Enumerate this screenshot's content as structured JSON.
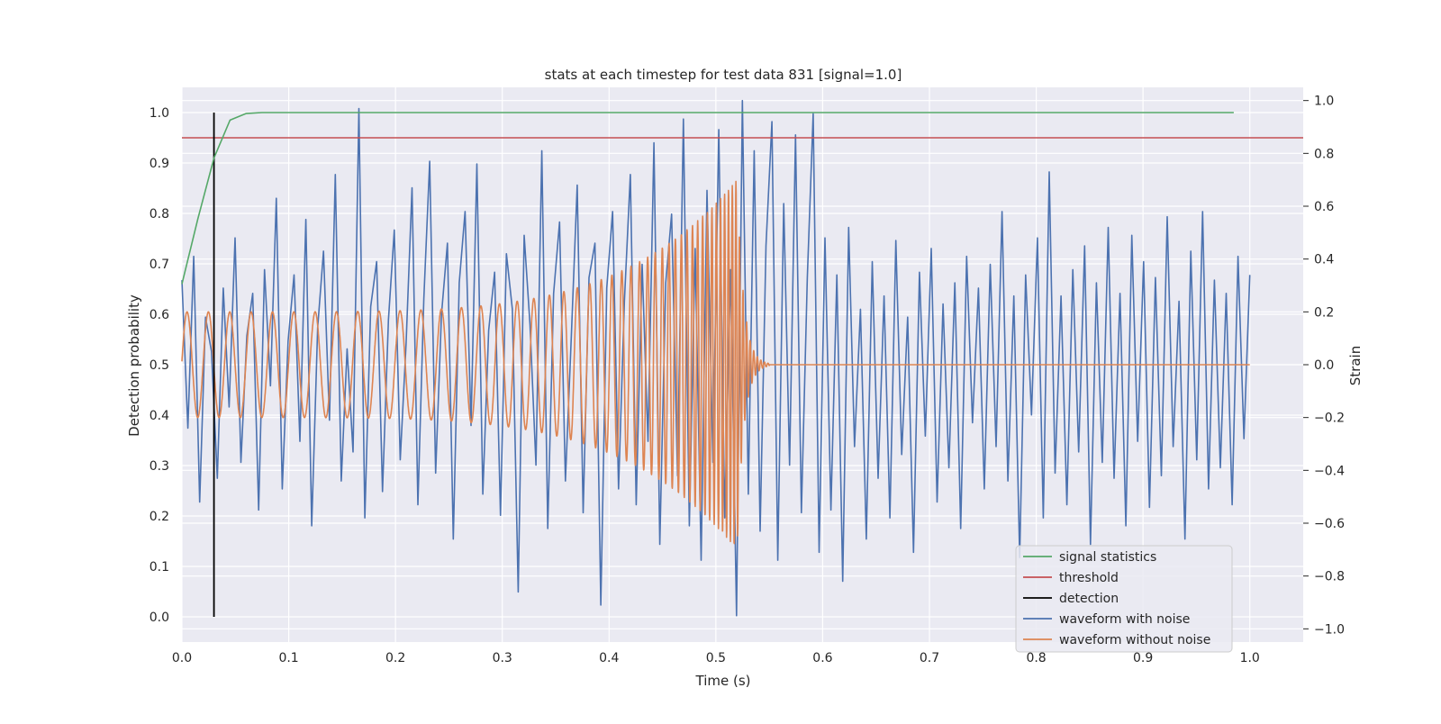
{
  "chart_data": {
    "type": "line",
    "title": "stats at each timestep for test data 831 [signal=1.0]",
    "xlabel": "Time (s)",
    "ylabel_left": "Detection probability",
    "ylabel_right": "Strain",
    "xlim": [
      0.0,
      1.05
    ],
    "ylim_left": [
      -0.05,
      1.05
    ],
    "ylim_right": [
      -1.05,
      1.05
    ],
    "x_ticks": [
      "0.0",
      "0.1",
      "0.2",
      "0.3",
      "0.4",
      "0.5",
      "0.6",
      "0.7",
      "0.8",
      "0.9",
      "1.0"
    ],
    "y_ticks_left": [
      "0.0",
      "0.1",
      "0.2",
      "0.3",
      "0.4",
      "0.5",
      "0.6",
      "0.7",
      "0.8",
      "0.9",
      "1.0"
    ],
    "y_ticks_right": [
      "−1.0",
      "−0.8",
      "−0.6",
      "−0.4",
      "−0.2",
      "0.0",
      "0.2",
      "0.4",
      "0.6",
      "0.8",
      "1.0"
    ],
    "grid": true,
    "legend_position": "lower-right",
    "signal_statistics": {
      "x": [
        0.0,
        0.015,
        0.03,
        0.045,
        0.06,
        0.075,
        0.1,
        0.3,
        0.5,
        0.7,
        0.9,
        0.985
      ],
      "y": [
        0.66,
        0.79,
        0.91,
        0.985,
        0.998,
        1.0,
        1.0,
        1.0,
        1.0,
        1.0,
        1.0,
        1.0
      ]
    },
    "threshold": {
      "value": 0.95
    },
    "detection": {
      "x": 0.03
    },
    "waveform_with_noise": {
      "x_start": 0.0,
      "x_end": 1.0,
      "values": [
        0.32,
        -0.24,
        0.41,
        -0.52,
        0.18,
        0.05,
        -0.43,
        0.29,
        -0.16,
        0.48,
        -0.37,
        0.11,
        0.27,
        -0.55,
        0.36,
        -0.08,
        0.63,
        -0.47,
        0.09,
        0.34,
        -0.29,
        0.55,
        -0.61,
        0.14,
        0.43,
        -0.21,
        0.72,
        -0.44,
        0.06,
        -0.33,
        0.97,
        -0.58,
        0.22,
        0.39,
        -0.48,
        0.17,
        0.51,
        -0.36,
        0.08,
        0.67,
        -0.53,
        0.25,
        0.77,
        -0.41,
        0.19,
        0.46,
        -0.66,
        0.31,
        0.58,
        -0.23,
        0.76,
        -0.49,
        0.13,
        0.35,
        -0.57,
        0.42,
        0.21,
        -0.86,
        0.49,
        0.15,
        -0.38,
        0.81,
        -0.62,
        0.27,
        0.54,
        -0.44,
        0.11,
        0.68,
        -0.56,
        0.33,
        0.46,
        -0.91,
        0.29,
        0.58,
        -0.47,
        0.24,
        0.72,
        -0.53,
        0.38,
        -0.29,
        0.84,
        -0.68,
        0.31,
        0.57,
        -0.42,
        0.93,
        -0.61,
        0.44,
        -0.74,
        0.66,
        -0.37,
        0.89,
        -0.58,
        0.36,
        -0.95,
        1.0,
        -0.49,
        0.81,
        -0.63,
        0.45,
        0.92,
        -0.74,
        0.61,
        -0.38,
        0.87,
        -0.56,
        0.33,
        0.95,
        -0.71,
        0.48,
        -0.55,
        0.34,
        -0.82,
        0.52,
        -0.31,
        0.21,
        -0.66,
        0.39,
        -0.43,
        0.26,
        -0.58,
        0.47,
        -0.34,
        0.18,
        -0.71,
        0.35,
        -0.27,
        0.44,
        -0.52,
        0.23,
        -0.39,
        0.31,
        -0.62,
        0.41,
        -0.22,
        0.29,
        -0.47,
        0.38,
        -0.31,
        0.58,
        -0.44,
        0.26,
        -0.73,
        0.34,
        -0.19,
        0.48,
        -0.58,
        0.73,
        -0.41,
        0.26,
        -0.53,
        0.36,
        -0.33,
        0.45,
        -0.68,
        0.31,
        -0.37,
        0.52,
        -0.43,
        0.27,
        -0.61,
        0.49,
        -0.29,
        0.39,
        -0.54,
        0.33,
        -0.42,
        0.56,
        -0.31,
        0.24,
        -0.66,
        0.43,
        -0.36,
        0.58,
        -0.47,
        0.32,
        -0.39,
        0.27,
        -0.53,
        0.41,
        -0.28,
        0.34
      ]
    },
    "waveform_without_noise": {
      "start_amplitude": 0.2,
      "peak_amplitude": 0.7,
      "x_start": 0.0,
      "x_merger": 0.52,
      "x_ringdown_end": 0.55,
      "x_end": 1.0,
      "start_frequency_hz": 50,
      "merger_frequency_hz": 300
    },
    "legend": [
      {
        "label": "signal statistics",
        "color": "#55a868"
      },
      {
        "label": "threshold",
        "color": "#c44e52"
      },
      {
        "label": "detection",
        "color": "#000000"
      },
      {
        "label": "waveform with noise",
        "color": "#4c72b0"
      },
      {
        "label": "waveform without noise",
        "color": "#dd8452"
      }
    ],
    "colors": {
      "plot_background": "#eaeaf2",
      "grid": "#ffffff",
      "signal_statistics": "#55a868",
      "threshold": "#c44e52",
      "detection": "#000000",
      "waveform_with_noise": "#4c72b0",
      "waveform_without_noise": "#dd8452"
    }
  }
}
